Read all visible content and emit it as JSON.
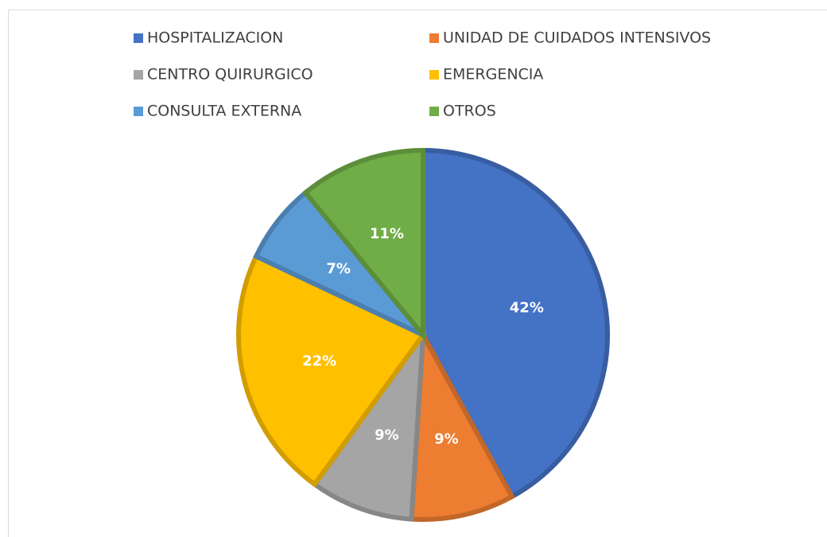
{
  "chart_data": {
    "type": "pie",
    "categories": [
      "HOSPITALIZACION",
      "UNIDAD DE CUIDADOS INTENSIVOS",
      "CENTRO QUIRURGICO",
      "EMERGENCIA",
      "CONSULTA EXTERNA",
      "OTROS"
    ],
    "values": [
      42,
      9,
      9,
      22,
      7,
      11
    ],
    "value_labels": [
      "42%",
      "9%",
      "9%",
      "22%",
      "7%",
      "11%"
    ],
    "colors": [
      "#4472c4",
      "#ed7d31",
      "#a5a5a5",
      "#ffc000",
      "#5b9bd5",
      "#70ad47"
    ],
    "legend": "top"
  }
}
